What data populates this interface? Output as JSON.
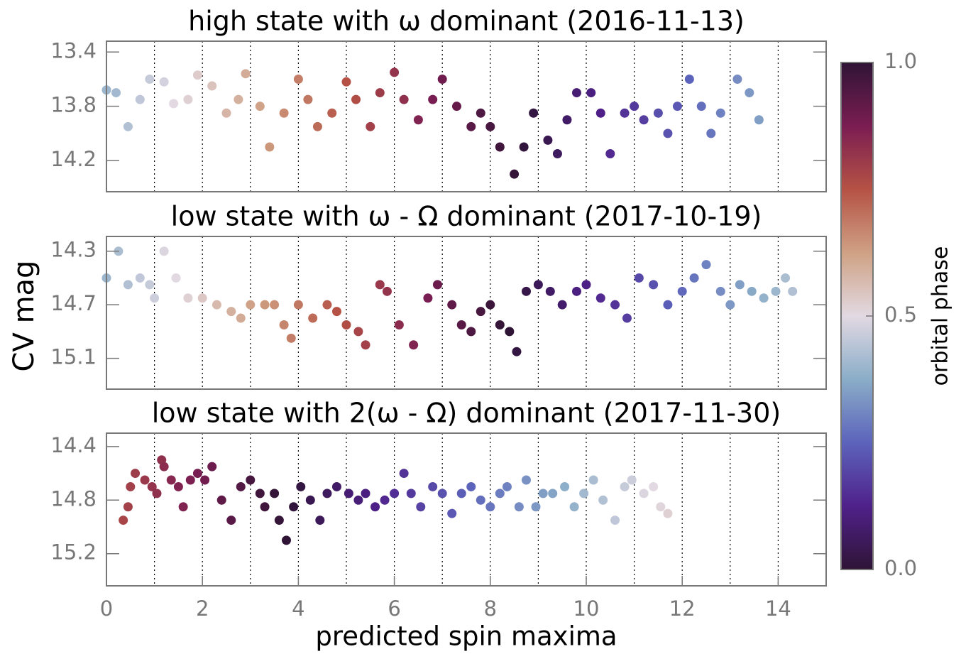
{
  "figure": {
    "xlabel": "predicted spin maxima",
    "ylabel": "CV mag",
    "xgrid": [
      1,
      2,
      3,
      4,
      5,
      6,
      7,
      8,
      9,
      10,
      11,
      12,
      13,
      14
    ]
  },
  "colorbar": {
    "label": "orbital phase",
    "clim": [
      0,
      1
    ],
    "ticks": [
      {
        "value": 0,
        "label": "0.0"
      },
      {
        "value": 0.5,
        "label": "0.5"
      },
      {
        "value": 1,
        "label": "1.0"
      }
    ],
    "colormap": [
      "#2f1436",
      "#4f218a",
      "#5c63bb",
      "#8aadc8",
      "#e2d9e2",
      "#cfa184",
      "#b55245",
      "#7a1d52",
      "#2f1436"
    ]
  },
  "chart_data": [
    {
      "type": "scatter",
      "title": "high state with ω dominant  (2016-11-13)",
      "xlim": [
        0,
        15
      ],
      "ylim": [
        13.32,
        14.43
      ],
      "y_inverted": true,
      "yticks": [
        13.4,
        13.8,
        14.2
      ],
      "x": [
        0,
        0.2,
        0.45,
        0.7,
        0.9,
        1.2,
        1.4,
        1.7,
        1.9,
        2.2,
        2.5,
        2.75,
        2.9,
        3.2,
        3.4,
        3.7,
        4.0,
        4.2,
        4.4,
        4.7,
        5.0,
        5.2,
        5.5,
        5.7,
        6.0,
        6.2,
        6.5,
        6.8,
        7.0,
        7.3,
        7.6,
        7.8,
        8.0,
        8.2,
        8.5,
        8.7,
        8.9,
        9.2,
        9.4,
        9.6,
        9.8,
        10.1,
        10.3,
        10.5,
        10.8,
        11.0,
        11.2,
        11.5,
        11.7,
        11.9,
        12.15,
        12.4,
        12.6,
        12.8,
        13.15,
        13.4,
        13.6
      ],
      "values": [
        13.68,
        13.7,
        13.95,
        13.75,
        13.6,
        13.62,
        13.78,
        13.75,
        13.57,
        13.65,
        13.85,
        13.75,
        13.56,
        13.8,
        14.1,
        13.85,
        13.6,
        13.75,
        13.95,
        13.85,
        13.62,
        13.75,
        13.95,
        13.7,
        13.55,
        13.75,
        13.9,
        13.75,
        13.6,
        13.8,
        13.95,
        13.85,
        13.95,
        14.1,
        14.3,
        14.1,
        13.85,
        14.05,
        14.15,
        13.9,
        13.7,
        13.7,
        13.85,
        14.15,
        13.85,
        13.8,
        13.9,
        13.85,
        14.0,
        13.8,
        13.6,
        13.8,
        14.0,
        13.85,
        13.6,
        13.7,
        13.9
      ],
      "phase": [
        0.4,
        0.41,
        0.43,
        0.45,
        0.46,
        0.48,
        0.5,
        0.52,
        0.53,
        0.55,
        0.58,
        0.59,
        0.6,
        0.62,
        0.64,
        0.66,
        0.68,
        0.69,
        0.71,
        0.73,
        0.75,
        0.76,
        0.79,
        0.8,
        0.82,
        0.83,
        0.86,
        0.88,
        0.89,
        0.91,
        0.93,
        0.95,
        0.96,
        0.97,
        0.99,
        0.01,
        0.02,
        0.04,
        0.06,
        0.07,
        0.09,
        0.11,
        0.12,
        0.14,
        0.16,
        0.17,
        0.18,
        0.21,
        0.22,
        0.23,
        0.25,
        0.27,
        0.28,
        0.3,
        0.32,
        0.34,
        0.35
      ]
    },
    {
      "type": "scatter",
      "title": "low state with ω - Ω dominant  (2017-10-19)",
      "xlim": [
        0,
        15
      ],
      "ylim": [
        14.19,
        15.33
      ],
      "y_inverted": true,
      "yticks": [
        14.3,
        14.7,
        15.1
      ],
      "x": [
        0,
        0.25,
        0.45,
        0.7,
        0.9,
        1.0,
        1.2,
        1.45,
        1.7,
        2.0,
        2.3,
        2.6,
        2.8,
        3.0,
        3.3,
        3.5,
        3.7,
        3.85,
        4.0,
        4.3,
        4.6,
        4.8,
        5.0,
        5.25,
        5.4,
        5.7,
        5.85,
        6.1,
        6.4,
        6.7,
        6.9,
        7.2,
        7.4,
        7.6,
        7.8,
        8.0,
        8.2,
        8.4,
        8.55,
        8.75,
        9.0,
        9.25,
        9.5,
        9.8,
        10.0,
        10.3,
        10.6,
        10.85,
        11.1,
        11.4,
        11.7,
        12.0,
        12.25,
        12.5,
        12.8,
        13.0,
        13.2,
        13.45,
        13.7,
        13.95,
        14.15,
        14.3
      ],
      "values": [
        14.5,
        14.3,
        14.55,
        14.5,
        14.55,
        14.65,
        14.3,
        14.5,
        14.65,
        14.65,
        14.7,
        14.75,
        14.8,
        14.7,
        14.7,
        14.7,
        14.85,
        14.95,
        14.7,
        14.8,
        14.7,
        14.75,
        14.85,
        14.9,
        15.0,
        14.55,
        14.6,
        14.85,
        15.0,
        14.65,
        14.55,
        14.7,
        14.85,
        14.9,
        14.75,
        14.7,
        14.85,
        14.9,
        15.05,
        14.6,
        14.55,
        14.6,
        14.7,
        14.6,
        14.55,
        14.65,
        14.7,
        14.8,
        14.5,
        14.55,
        14.7,
        14.6,
        14.5,
        14.4,
        14.6,
        14.7,
        14.55,
        14.6,
        14.65,
        14.6,
        14.5,
        14.6
      ],
      "phase": [
        0.4,
        0.42,
        0.43,
        0.45,
        0.46,
        0.47,
        0.49,
        0.5,
        0.52,
        0.54,
        0.57,
        0.59,
        0.6,
        0.62,
        0.64,
        0.65,
        0.67,
        0.68,
        0.69,
        0.71,
        0.73,
        0.75,
        0.76,
        0.78,
        0.79,
        0.81,
        0.82,
        0.84,
        0.86,
        0.88,
        0.9,
        0.92,
        0.93,
        0.95,
        0.96,
        0.98,
        0.99,
        0.0,
        0.02,
        0.03,
        0.05,
        0.07,
        0.08,
        0.11,
        0.12,
        0.14,
        0.16,
        0.18,
        0.2,
        0.22,
        0.24,
        0.26,
        0.28,
        0.3,
        0.32,
        0.34,
        0.35,
        0.37,
        0.39,
        0.4,
        0.42,
        0.43
      ]
    },
    {
      "type": "scatter",
      "title": "low state with 2(ω - Ω) dominant  (2017-11-30)",
      "xlim": [
        0,
        15
      ],
      "ylim": [
        14.3,
        15.44
      ],
      "y_inverted": true,
      "yticks": [
        14.4,
        14.8,
        15.2
      ],
      "xticks": [
        0,
        2,
        4,
        6,
        8,
        10,
        12,
        14
      ],
      "x": [
        0.35,
        0.45,
        0.5,
        0.6,
        0.8,
        0.95,
        1.05,
        1.15,
        1.2,
        1.35,
        1.5,
        1.6,
        1.75,
        1.9,
        2.05,
        2.2,
        2.4,
        2.6,
        2.8,
        3.0,
        3.2,
        3.3,
        3.5,
        3.6,
        3.75,
        3.9,
        4.05,
        4.25,
        4.45,
        4.6,
        4.8,
        5.05,
        5.25,
        5.4,
        5.6,
        5.8,
        6.0,
        6.2,
        6.35,
        6.55,
        6.8,
        7.0,
        7.2,
        7.4,
        7.6,
        7.8,
        8.0,
        8.2,
        8.35,
        8.6,
        8.75,
        8.95,
        9.1,
        9.3,
        9.55,
        9.75,
        9.95,
        10.15,
        10.35,
        10.6,
        10.8,
        10.95,
        11.2,
        11.4,
        11.55,
        11.7
      ],
      "values": [
        14.95,
        14.85,
        14.7,
        14.6,
        14.65,
        14.7,
        14.75,
        14.5,
        14.55,
        14.65,
        14.7,
        14.85,
        14.65,
        14.6,
        14.65,
        14.55,
        14.8,
        14.95,
        14.7,
        14.65,
        14.75,
        14.85,
        14.75,
        14.95,
        15.1,
        14.85,
        14.7,
        14.8,
        14.95,
        14.75,
        14.7,
        14.75,
        14.8,
        14.75,
        14.85,
        14.8,
        14.75,
        14.6,
        14.75,
        14.85,
        14.7,
        14.75,
        14.9,
        14.75,
        14.7,
        14.8,
        14.85,
        14.75,
        14.7,
        14.85,
        14.65,
        14.85,
        14.75,
        14.75,
        14.7,
        14.85,
        14.75,
        14.65,
        14.8,
        14.95,
        14.7,
        14.65,
        14.75,
        14.7,
        14.85,
        14.9
      ],
      "phase": [
        0.78,
        0.79,
        0.79,
        0.8,
        0.81,
        0.82,
        0.83,
        0.83,
        0.84,
        0.85,
        0.86,
        0.86,
        0.87,
        0.88,
        0.89,
        0.9,
        0.92,
        0.93,
        0.94,
        0.96,
        0.97,
        0.97,
        0.99,
        0.99,
        0.0,
        0.01,
        0.02,
        0.04,
        0.05,
        0.06,
        0.07,
        0.09,
        0.1,
        0.11,
        0.12,
        0.14,
        0.15,
        0.16,
        0.17,
        0.19,
        0.2,
        0.22,
        0.23,
        0.24,
        0.25,
        0.27,
        0.28,
        0.29,
        0.3,
        0.32,
        0.33,
        0.34,
        0.35,
        0.36,
        0.38,
        0.39,
        0.41,
        0.42,
        0.43,
        0.45,
        0.46,
        0.47,
        0.49,
        0.5,
        0.51,
        0.52
      ]
    }
  ]
}
